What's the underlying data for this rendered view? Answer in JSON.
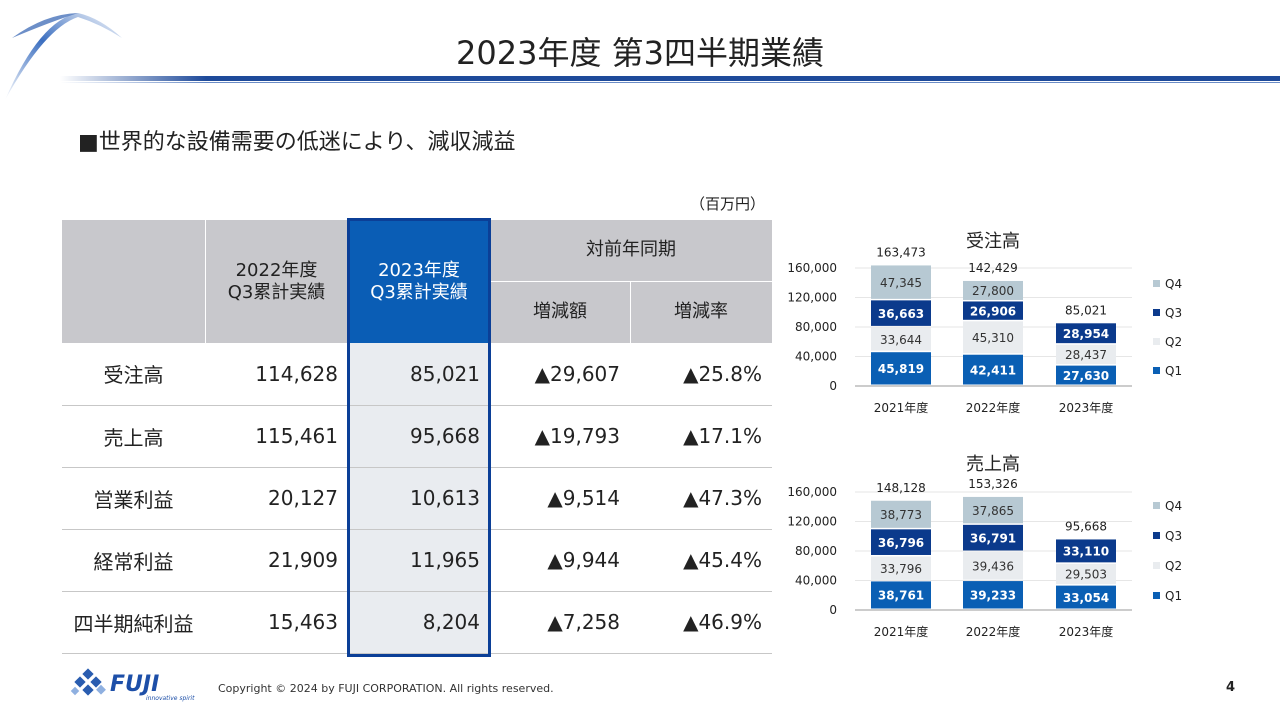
{
  "header": {
    "title": "2023年度 第3四半期業績"
  },
  "subtitle": "■世界的な設備需要の低迷により、減収減益",
  "unit": "（百万円）",
  "table": {
    "headers": {
      "prev": "2022年度\nQ3累計実績",
      "curr": "2023年度\nQ3累計実績",
      "yoy": "対前年同期",
      "diff": "増減額",
      "rate": "増減率"
    },
    "rows": [
      {
        "label": "受注高",
        "prev": "114,628",
        "curr": "85,021",
        "diff": "▲29,607",
        "rate": "▲25.8%"
      },
      {
        "label": "売上高",
        "prev": "115,461",
        "curr": "95,668",
        "diff": "▲19,793",
        "rate": "▲17.1%"
      },
      {
        "label": "営業利益",
        "prev": "20,127",
        "curr": "10,613",
        "diff": "▲9,514",
        "rate": "▲47.3%"
      },
      {
        "label": "経常利益",
        "prev": "21,909",
        "curr": "11,965",
        "diff": "▲9,944",
        "rate": "▲45.4%"
      },
      {
        "label": "四半期純利益",
        "prev": "15,463",
        "curr": "8,204",
        "diff": "▲7,258",
        "rate": "▲46.9%"
      }
    ]
  },
  "colors": {
    "Q1": "#0a5fb4",
    "Q2": "#e9ecef",
    "Q3": "#0b3a8c",
    "Q4": "#b7c9d3"
  },
  "chart_data": [
    {
      "type": "bar",
      "stacked": true,
      "title": "受注高",
      "categories": [
        "2021年度",
        "2022年度",
        "2023年度"
      ],
      "ylim": [
        0,
        160000
      ],
      "yticks": [
        "0",
        "40,000",
        "80,000",
        "120,000",
        "160,000"
      ],
      "legend": "right",
      "grid": true,
      "totals": [
        "163,473",
        "142,429",
        "85,021"
      ],
      "series": [
        {
          "name": "Q1",
          "values": [
            45819,
            42411,
            27630
          ]
        },
        {
          "name": "Q2",
          "values": [
            33644,
            45310,
            28437
          ]
        },
        {
          "name": "Q3",
          "values": [
            36663,
            26906,
            28954
          ]
        },
        {
          "name": "Q4",
          "values": [
            47345,
            27800,
            null
          ]
        }
      ]
    },
    {
      "type": "bar",
      "stacked": true,
      "title": "売上高",
      "categories": [
        "2021年度",
        "2022年度",
        "2023年度"
      ],
      "ylim": [
        0,
        160000
      ],
      "yticks": [
        "0",
        "40,000",
        "80,000",
        "120,000",
        "160,000"
      ],
      "legend": "right",
      "grid": true,
      "totals": [
        "148,128",
        "153,326",
        "95,668"
      ],
      "series": [
        {
          "name": "Q1",
          "values": [
            38761,
            39233,
            33054
          ]
        },
        {
          "name": "Q2",
          "values": [
            33796,
            39436,
            29503
          ]
        },
        {
          "name": "Q3",
          "values": [
            36796,
            36791,
            33110
          ]
        },
        {
          "name": "Q4",
          "values": [
            38773,
            37865,
            null
          ]
        }
      ]
    }
  ],
  "footer": {
    "logo": "FUJI",
    "tagline": "innovative spirit",
    "copyright": "Copyright © 2024 by FUJI CORPORATION. All rights reserved.",
    "page": "4"
  }
}
